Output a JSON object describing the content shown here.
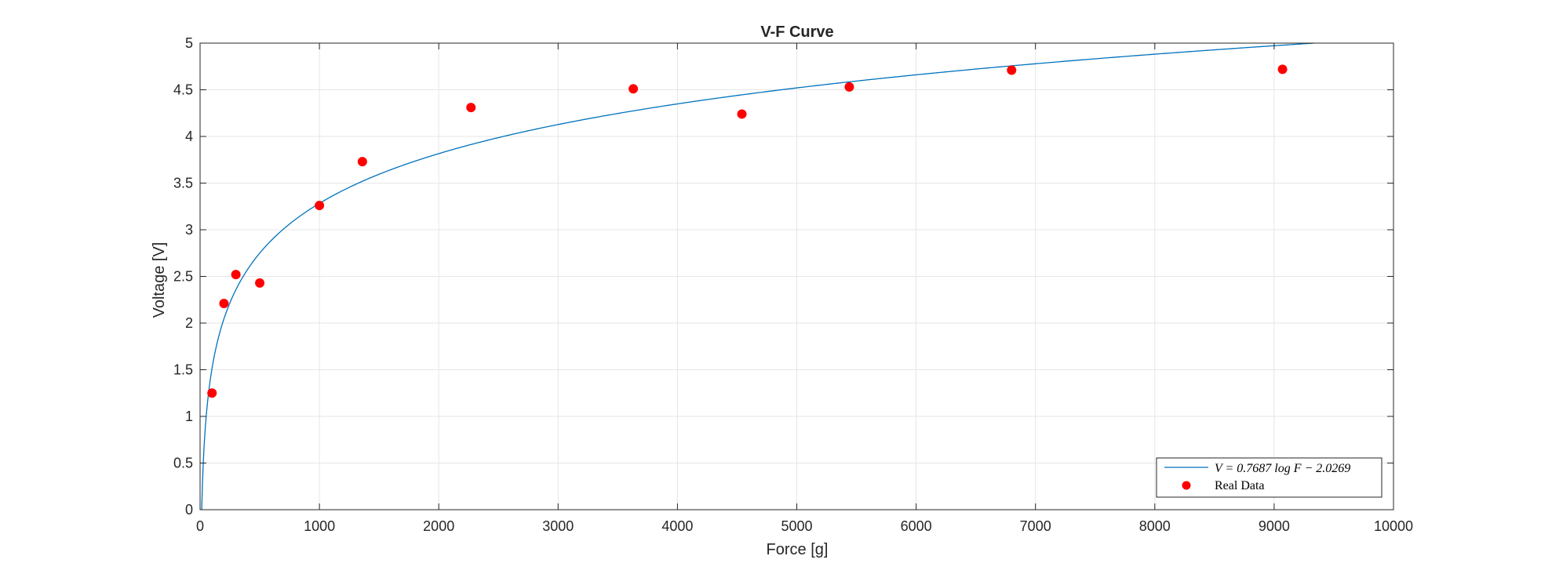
{
  "chart_data": {
    "type": "scatter",
    "title": "V-F Curve",
    "xlabel": "Force [g]",
    "ylabel": "Voltage [V]",
    "xlim": [
      0,
      10000
    ],
    "ylim": [
      0,
      5
    ],
    "xticks": [
      0,
      1000,
      2000,
      3000,
      4000,
      5000,
      6000,
      7000,
      8000,
      9000,
      10000
    ],
    "xtick_labels": [
      "0",
      "1000",
      "2000",
      "3000",
      "4000",
      "5000",
      "6000",
      "7000",
      "8000",
      "9000",
      "10000"
    ],
    "yticks": [
      0,
      0.5,
      1,
      1.5,
      2,
      2.5,
      3,
      3.5,
      4,
      4.5,
      5
    ],
    "ytick_labels": [
      "0",
      "0.5",
      "1",
      "1.5",
      "2",
      "2.5",
      "3",
      "3.5",
      "4",
      "4.5",
      "5"
    ],
    "grid": true,
    "legend_position": "bottom-right",
    "series": [
      {
        "name": "V = 0.7687 log F − 2.0269",
        "kind": "line",
        "color": "#0072BD",
        "equation": {
          "a": 0.7687,
          "b": -2.0269,
          "log": "natural"
        }
      },
      {
        "name": "Real Data",
        "kind": "scatter",
        "color": "#FF0000",
        "x": [
          100,
          200,
          300,
          500,
          1000,
          1360,
          2270,
          3630,
          4540,
          5440,
          6800,
          9070
        ],
        "y": [
          1.25,
          2.21,
          2.52,
          2.43,
          3.26,
          3.73,
          4.31,
          4.51,
          4.24,
          4.53,
          4.71,
          4.72
        ]
      }
    ]
  }
}
